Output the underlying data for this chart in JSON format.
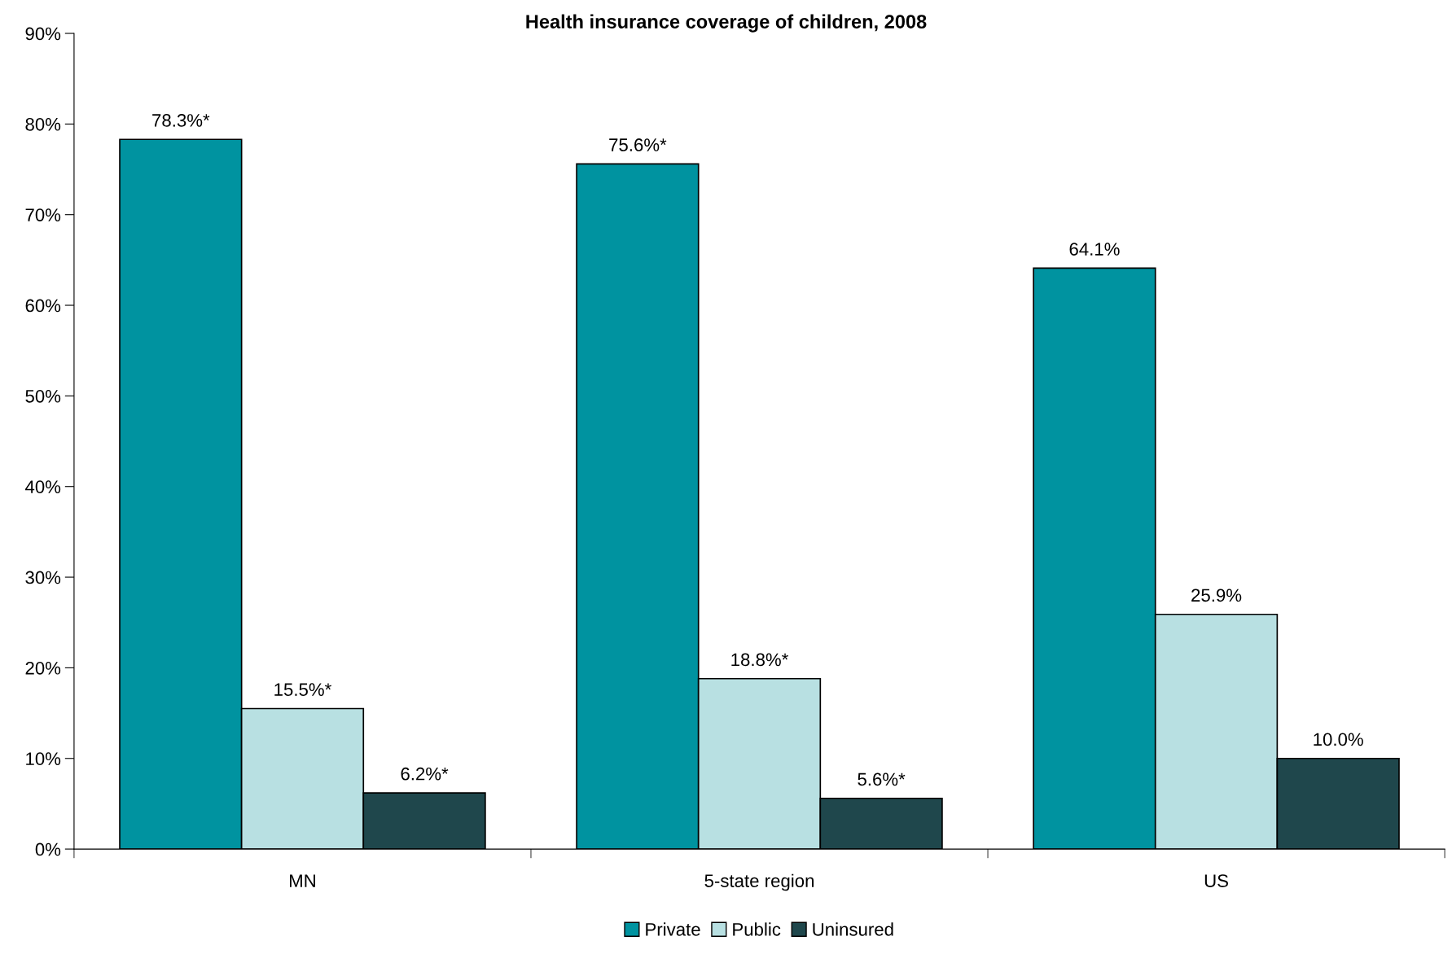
{
  "chart_data": {
    "type": "bar",
    "title": "Health insurance coverage of children, 2008",
    "categories": [
      "MN",
      "5-state region",
      "US"
    ],
    "series": [
      {
        "name": "Private",
        "color": "#0093a0",
        "values": [
          78.3,
          75.6,
          64.1
        ],
        "value_labels": [
          "78.3%*",
          "75.6%*",
          "64.1%"
        ]
      },
      {
        "name": "Public",
        "color": "#b8e0e2",
        "values": [
          15.5,
          18.8,
          25.9
        ],
        "value_labels": [
          "15.5%*",
          "18.8%*",
          "25.9%"
        ]
      },
      {
        "name": "Uninsured",
        "color": "#1f474c",
        "values": [
          6.2,
          5.6,
          10.0
        ],
        "value_labels": [
          "6.2%*",
          "5.6%*",
          "10.0%"
        ]
      }
    ],
    "ylim": [
      0,
      90
    ],
    "yticks": [
      {
        "value": 0,
        "label": "0%"
      },
      {
        "value": 10,
        "label": "10%"
      },
      {
        "value": 20,
        "label": "20%"
      },
      {
        "value": 30,
        "label": "30%"
      },
      {
        "value": 40,
        "label": "40%"
      },
      {
        "value": 50,
        "label": "50%"
      },
      {
        "value": 60,
        "label": "60%"
      },
      {
        "value": 70,
        "label": "70%"
      },
      {
        "value": 80,
        "label": "80%"
      },
      {
        "value": 90,
        "label": "90%"
      }
    ],
    "grid": false,
    "legend": "bottom"
  }
}
